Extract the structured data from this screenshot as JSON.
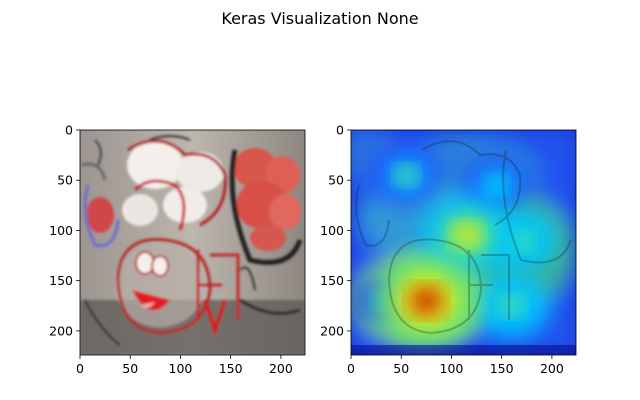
{
  "figure": {
    "title": "Keras Visualization None"
  },
  "chart_data": [
    {
      "type": "image",
      "panel": "left",
      "content": "graffiti photo",
      "xlim": [
        0,
        224
      ],
      "ylim": [
        224,
        0
      ],
      "xticks": [
        0,
        50,
        100,
        150,
        200
      ],
      "yticks": [
        0,
        50,
        100,
        150,
        200
      ],
      "xtick_labels": [
        "0",
        "50",
        "100",
        "150",
        "200"
      ],
      "ytick_labels": [
        "0",
        "50",
        "100",
        "150",
        "200"
      ]
    },
    {
      "type": "heatmap",
      "panel": "right",
      "content": "jet attention map overlaid on graffiti photo",
      "colormap": "jet",
      "xlim": [
        0,
        224
      ],
      "ylim": [
        224,
        0
      ],
      "xticks": [
        0,
        50,
        100,
        150,
        200
      ],
      "yticks": [
        0,
        50,
        100,
        150,
        200
      ],
      "xtick_labels": [
        "0",
        "50",
        "100",
        "150",
        "200"
      ],
      "ytick_labels": [
        "0",
        "50",
        "100",
        "150",
        "200"
      ],
      "hotspots": [
        {
          "x": 75,
          "y": 170,
          "level": 1.0
        },
        {
          "x": 115,
          "y": 105,
          "level": 0.8
        },
        {
          "x": 170,
          "y": 110,
          "level": 0.55
        },
        {
          "x": 145,
          "y": 55,
          "level": 0.45
        },
        {
          "x": 55,
          "y": 45,
          "level": 0.5
        },
        {
          "x": 160,
          "y": 175,
          "level": 0.6
        },
        {
          "x": 30,
          "y": 170,
          "level": 0.3
        }
      ]
    }
  ]
}
